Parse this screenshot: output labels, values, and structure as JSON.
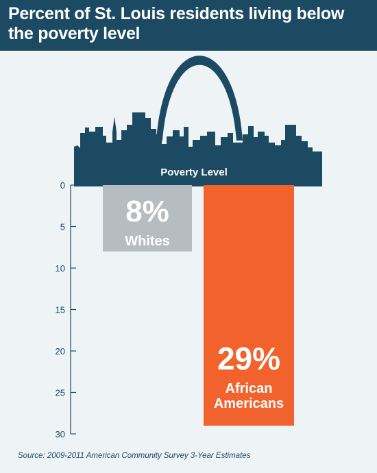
{
  "header": {
    "title": "Percent of St. Louis residents living below the poverty level"
  },
  "colors": {
    "header_bg": "#1c4a63",
    "panel_bg": "#eef3f6",
    "skyline": "#1c4a63",
    "whites_bar": "#b6bcc0",
    "african_americans_bar": "#f2622d",
    "bar_text": "#ffffff"
  },
  "chart_data": {
    "type": "bar",
    "orientation": "vertical",
    "baseline_label": "Poverty Level",
    "y_axis_direction": "downward",
    "ylim": [
      0,
      30
    ],
    "y_ticks": [
      0,
      5,
      10,
      15,
      20,
      25,
      30
    ],
    "categories": [
      "Whites",
      "African Americans"
    ],
    "values": [
      8,
      29
    ],
    "value_labels": [
      "8%",
      "29%"
    ],
    "category_labels": [
      [
        "Whites"
      ],
      [
        "African",
        "Americans"
      ]
    ],
    "grid": false
  },
  "footer": {
    "source": "Source: 2009-2011 American Community Survey 3-Year Estimates"
  }
}
